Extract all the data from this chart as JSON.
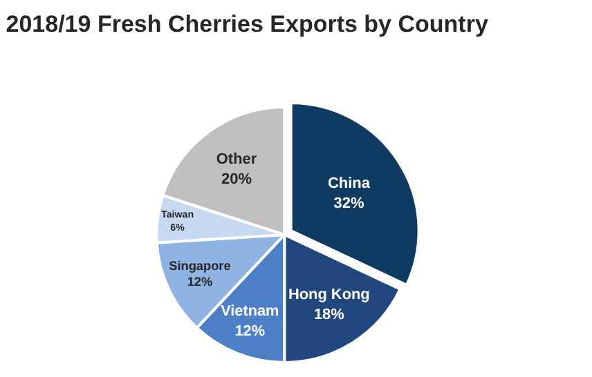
{
  "chart_data": {
    "type": "pie",
    "title": "2018/19 Fresh Cherries Exports by Country",
    "categories": [
      "China",
      "Hong Kong",
      "Vietnam",
      "Singapore",
      "Taiwan",
      "Other"
    ],
    "values": [
      32,
      18,
      12,
      12,
      6,
      20
    ],
    "value_labels": [
      "32%",
      "18%",
      "12%",
      "12%",
      "6%",
      "20%"
    ],
    "colors": [
      "#0f3b63",
      "#22477f",
      "#4d7fc6",
      "#8fb3e3",
      "#c6d9f1",
      "#bfbfbf"
    ],
    "legend": false
  }
}
